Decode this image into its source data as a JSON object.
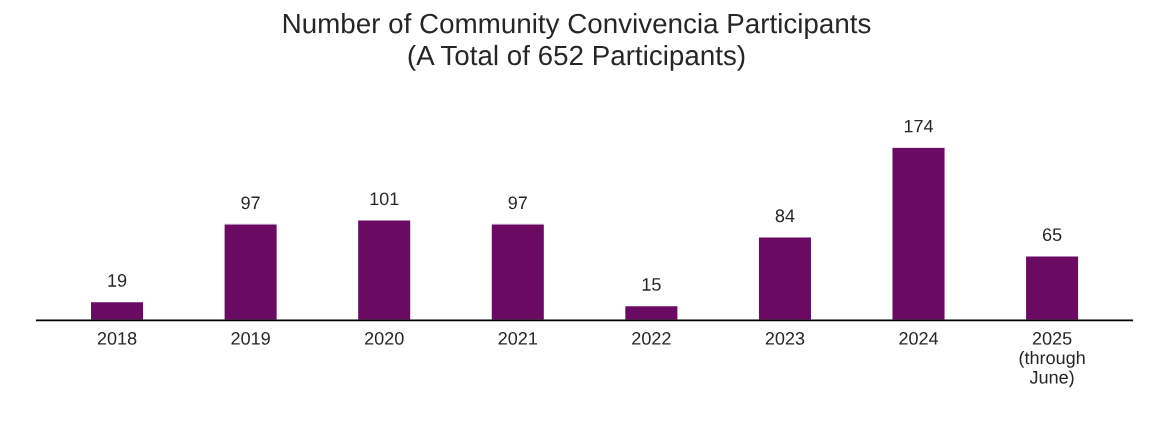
{
  "chart_data": {
    "type": "bar",
    "title": "Number of Community Convivencia Participants\n(A Total of 652 Participants)",
    "categories": [
      "2018",
      "2019",
      "2020",
      "2021",
      "2022",
      "2023",
      "2024",
      "2025\n(through\nJune)"
    ],
    "values": [
      19,
      97,
      101,
      97,
      15,
      84,
      174,
      65
    ],
    "color": "#6b0a62",
    "data_labels": true,
    "grid": false,
    "legend": false
  }
}
